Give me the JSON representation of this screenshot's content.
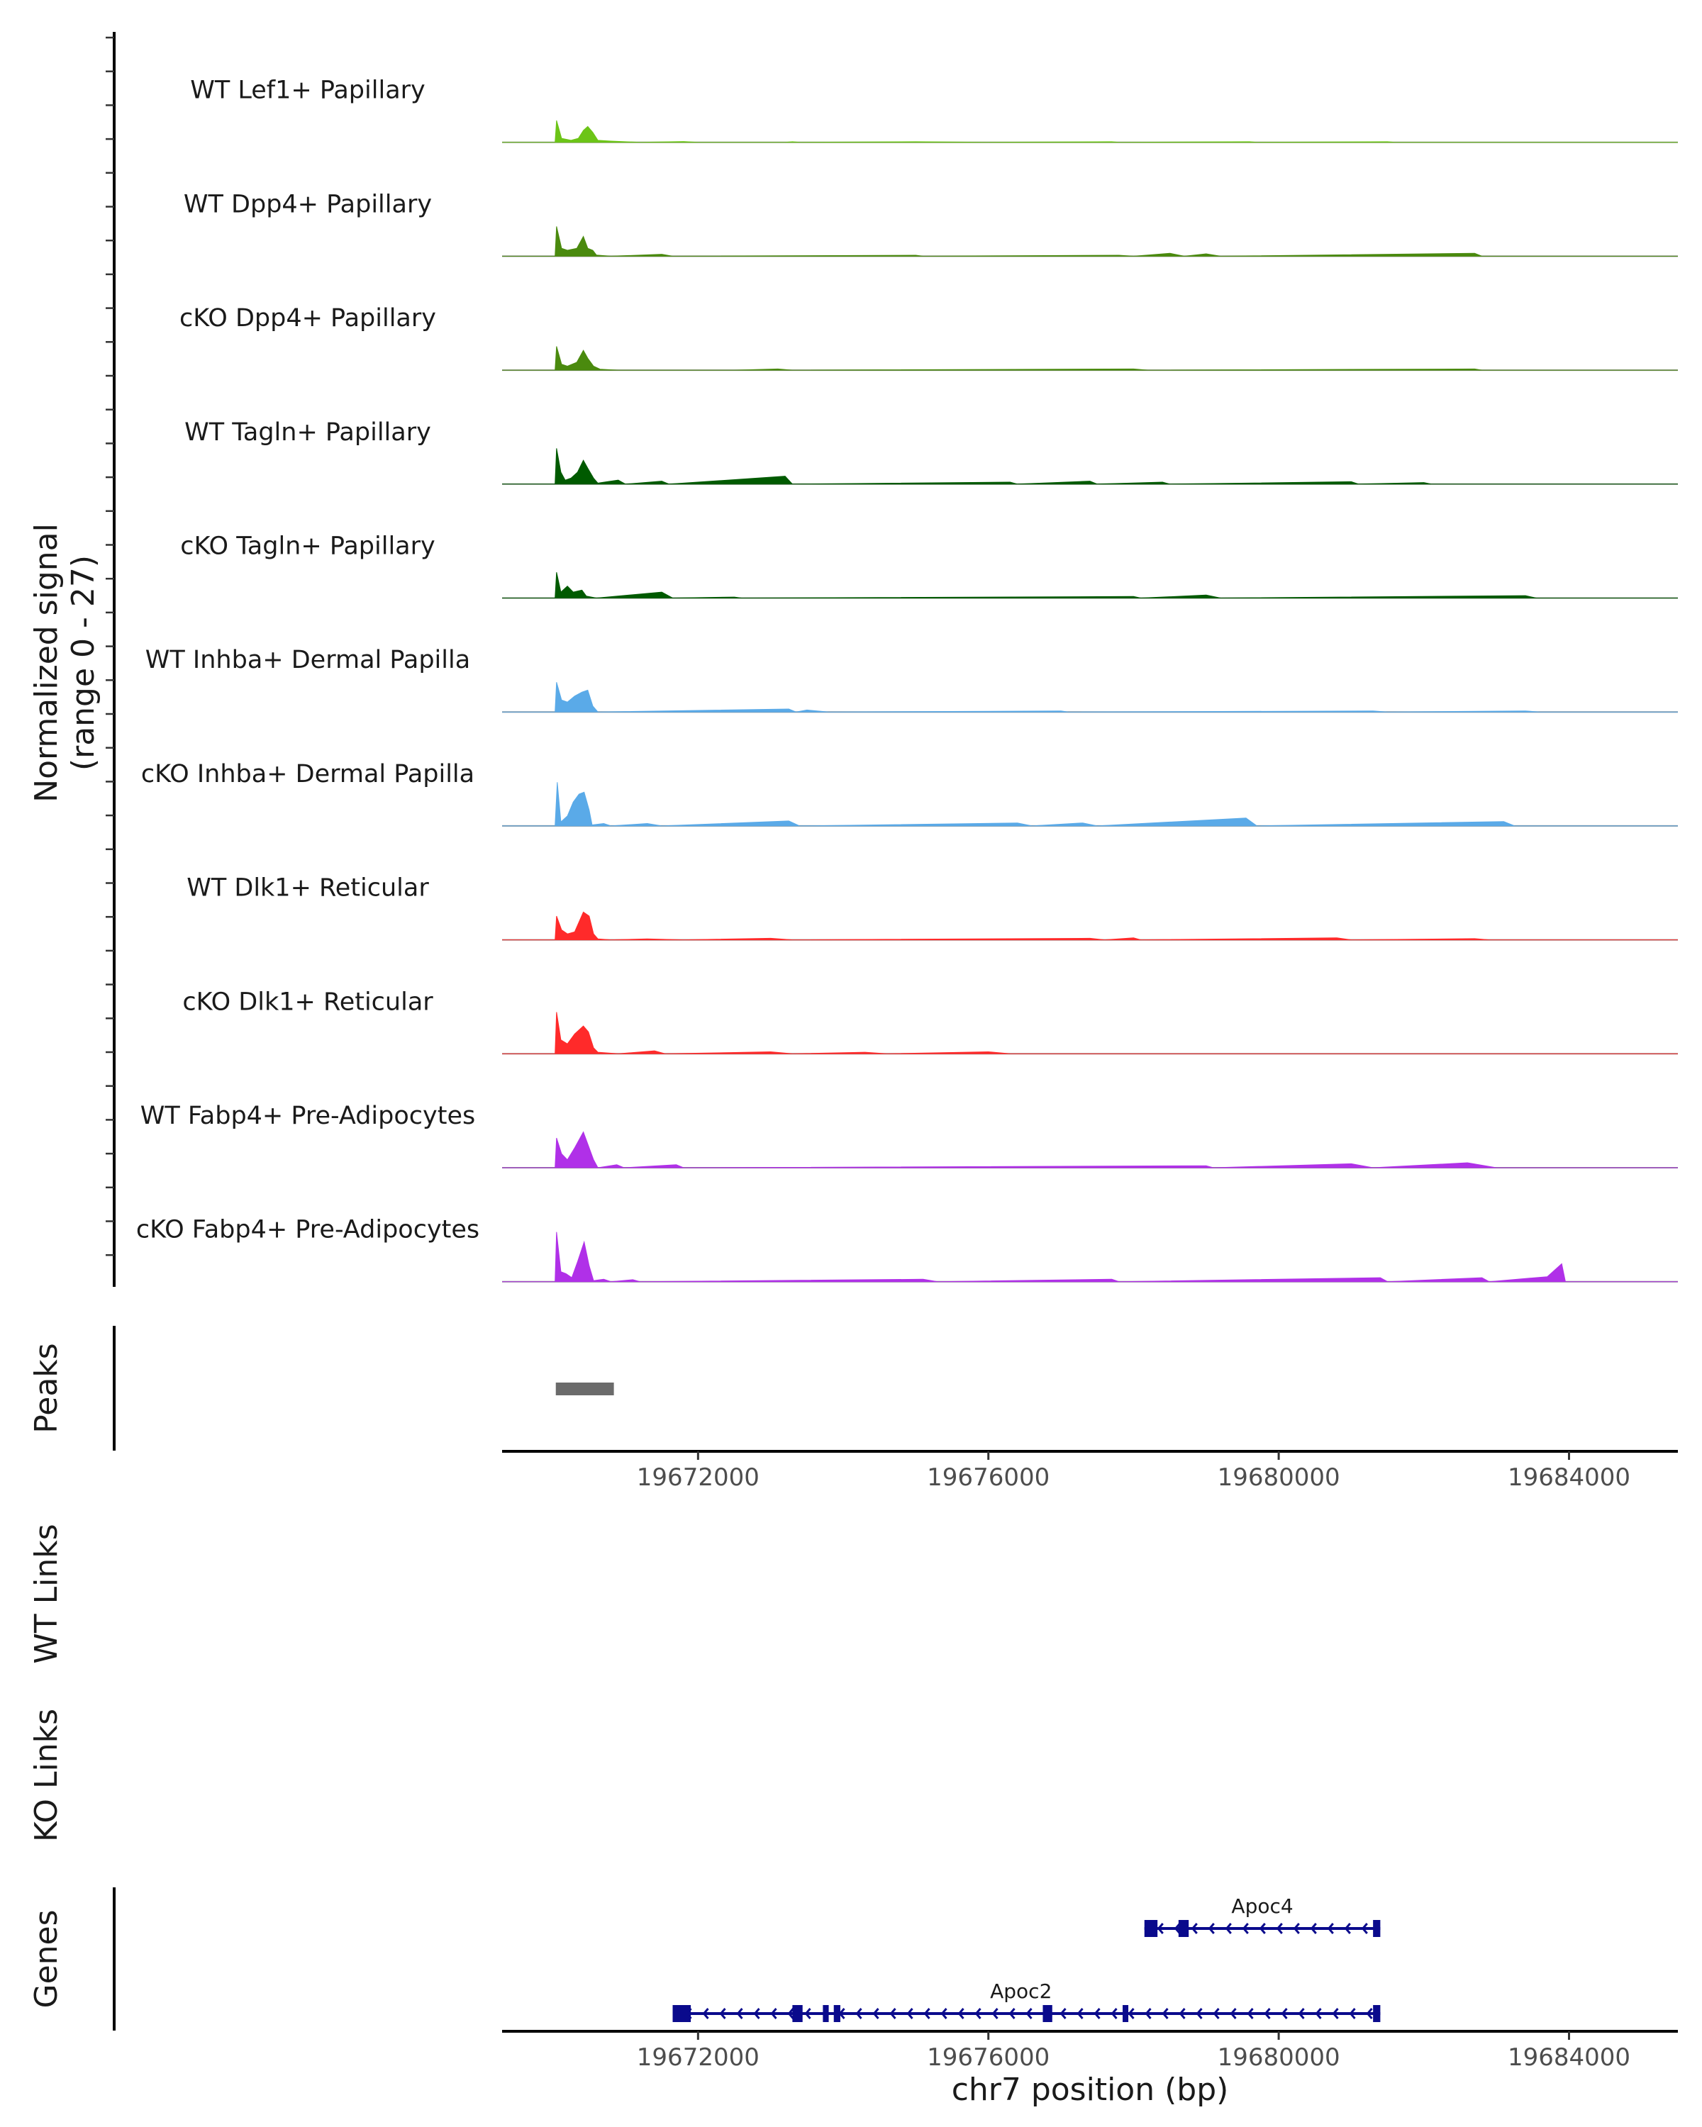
{
  "chart_data": {
    "type": "area",
    "title": "",
    "chromosome": "chr7",
    "xlabel": "chr7 position (bp)",
    "xlim": [
      19669300,
      19685500
    ],
    "xticks": [
      19672000,
      19676000,
      19680000,
      19684000
    ],
    "xtick_labels": [
      "19672000",
      "19676000",
      "19680000",
      "19684000"
    ],
    "ylabel_line1": "Normalized signal",
    "ylabel_line2": "(range 0 - 27)",
    "ylim": [
      0,
      27
    ],
    "tracks": [
      {
        "name": "WT Lef1+ Papillary",
        "color": "#6cc417",
        "points": [
          [
            19669300,
            0
          ],
          [
            19670030,
            0
          ],
          [
            19670050,
            11
          ],
          [
            19670120,
            2
          ],
          [
            19670250,
            1
          ],
          [
            19670350,
            2
          ],
          [
            19670420,
            6
          ],
          [
            19670480,
            8
          ],
          [
            19670550,
            5
          ],
          [
            19670620,
            1
          ],
          [
            19670800,
            0.6
          ],
          [
            19671000,
            0.3
          ],
          [
            19671200,
            0
          ],
          [
            19671800,
            0.4
          ],
          [
            19672000,
            0
          ],
          [
            19673200,
            0
          ],
          [
            19673300,
            0.3
          ],
          [
            19673400,
            0
          ],
          [
            19675000,
            0.3
          ],
          [
            19676000,
            0
          ],
          [
            19677700,
            0.3
          ],
          [
            19677800,
            0
          ],
          [
            19679600,
            0.3
          ],
          [
            19679700,
            0
          ],
          [
            19681500,
            0.3
          ],
          [
            19681600,
            0
          ],
          [
            19685500,
            0
          ]
        ]
      },
      {
        "name": "WT Dpp4+ Papillary",
        "color": "#4a8a0e",
        "points": [
          [
            19669300,
            0
          ],
          [
            19670030,
            0
          ],
          [
            19670050,
            15
          ],
          [
            19670120,
            4
          ],
          [
            19670200,
            3
          ],
          [
            19670330,
            4
          ],
          [
            19670420,
            10
          ],
          [
            19670480,
            4
          ],
          [
            19670550,
            3
          ],
          [
            19670600,
            0.6
          ],
          [
            19670800,
            0
          ],
          [
            19671500,
            1
          ],
          [
            19671650,
            0
          ],
          [
            19675000,
            0.5
          ],
          [
            19675100,
            0
          ],
          [
            19677800,
            0.5
          ],
          [
            19678000,
            0
          ],
          [
            19678500,
            1.5
          ],
          [
            19678700,
            0
          ],
          [
            19679000,
            1.2
          ],
          [
            19679200,
            0
          ],
          [
            19682700,
            1.5
          ],
          [
            19682800,
            0
          ],
          [
            19685500,
            0
          ]
        ]
      },
      {
        "name": "cKO Dpp4+ Papillary",
        "color": "#4a8a0e",
        "points": [
          [
            19669300,
            0
          ],
          [
            19670030,
            0
          ],
          [
            19670050,
            12
          ],
          [
            19670120,
            3
          ],
          [
            19670200,
            2
          ],
          [
            19670330,
            4
          ],
          [
            19670420,
            10
          ],
          [
            19670480,
            6
          ],
          [
            19670560,
            2
          ],
          [
            19670650,
            0.5
          ],
          [
            19670900,
            0
          ],
          [
            19672500,
            0
          ],
          [
            19673100,
            0.6
          ],
          [
            19673300,
            0
          ],
          [
            19678000,
            0.6
          ],
          [
            19678200,
            0
          ],
          [
            19682700,
            0.6
          ],
          [
            19682800,
            0
          ],
          [
            19685500,
            0
          ]
        ]
      },
      {
        "name": "WT Tagln+ Papillary",
        "color": "#005a00",
        "points": [
          [
            19669300,
            0
          ],
          [
            19670030,
            0
          ],
          [
            19670050,
            18
          ],
          [
            19670110,
            6
          ],
          [
            19670170,
            2
          ],
          [
            19670250,
            3
          ],
          [
            19670340,
            6
          ],
          [
            19670420,
            12
          ],
          [
            19670480,
            8
          ],
          [
            19670560,
            3
          ],
          [
            19670620,
            0.5
          ],
          [
            19670750,
            1.2
          ],
          [
            19670900,
            2
          ],
          [
            19671000,
            0
          ],
          [
            19671500,
            1.5
          ],
          [
            19671600,
            0
          ],
          [
            19673200,
            4
          ],
          [
            19673300,
            0
          ],
          [
            19676300,
            1
          ],
          [
            19676400,
            0
          ],
          [
            19677400,
            1.5
          ],
          [
            19677500,
            0
          ],
          [
            19678400,
            1
          ],
          [
            19678500,
            0
          ],
          [
            19681000,
            1.2
          ],
          [
            19681100,
            0
          ],
          [
            19682000,
            0.8
          ],
          [
            19682100,
            0
          ],
          [
            19685500,
            0
          ]
        ]
      },
      {
        "name": "cKO Tagln+ Papillary",
        "color": "#005a00",
        "points": [
          [
            19669300,
            0
          ],
          [
            19670030,
            0
          ],
          [
            19670050,
            13
          ],
          [
            19670110,
            3
          ],
          [
            19670200,
            6
          ],
          [
            19670280,
            3
          ],
          [
            19670400,
            4
          ],
          [
            19670460,
            1
          ],
          [
            19670600,
            0
          ],
          [
            19671500,
            3
          ],
          [
            19671650,
            0
          ],
          [
            19672500,
            0.5
          ],
          [
            19672600,
            0
          ],
          [
            19678000,
            0.8
          ],
          [
            19678100,
            0
          ],
          [
            19679000,
            1.5
          ],
          [
            19679200,
            0
          ],
          [
            19683400,
            1.2
          ],
          [
            19683550,
            0
          ],
          [
            19685500,
            0
          ]
        ]
      },
      {
        "name": "WT Inhba+ Dermal Papilla",
        "color": "#5aaae8",
        "points": [
          [
            19669300,
            0
          ],
          [
            19670030,
            0
          ],
          [
            19670050,
            15
          ],
          [
            19670120,
            6
          ],
          [
            19670200,
            5
          ],
          [
            19670300,
            8
          ],
          [
            19670400,
            10
          ],
          [
            19670480,
            11
          ],
          [
            19670550,
            3
          ],
          [
            19670620,
            0
          ],
          [
            19673250,
            1.5
          ],
          [
            19673350,
            0
          ],
          [
            19673500,
            1
          ],
          [
            19673800,
            0
          ],
          [
            19677000,
            0.5
          ],
          [
            19677100,
            0
          ],
          [
            19681300,
            0.5
          ],
          [
            19681500,
            0
          ],
          [
            19683400,
            0.5
          ],
          [
            19683600,
            0
          ],
          [
            19685500,
            0
          ]
        ]
      },
      {
        "name": "cKO Inhba+ Dermal Papilla",
        "color": "#5aaae8",
        "points": [
          [
            19669300,
            0
          ],
          [
            19670030,
            0
          ],
          [
            19670060,
            22
          ],
          [
            19670110,
            2
          ],
          [
            19670200,
            5
          ],
          [
            19670280,
            12
          ],
          [
            19670360,
            16
          ],
          [
            19670430,
            17
          ],
          [
            19670500,
            8
          ],
          [
            19670540,
            0.5
          ],
          [
            19670700,
            1.2
          ],
          [
            19670800,
            0
          ],
          [
            19671300,
            1.2
          ],
          [
            19671500,
            0
          ],
          [
            19673250,
            2.5
          ],
          [
            19673400,
            0
          ],
          [
            19676400,
            1.5
          ],
          [
            19676600,
            0
          ],
          [
            19677300,
            1.5
          ],
          [
            19677500,
            0
          ],
          [
            19679550,
            4
          ],
          [
            19679700,
            0
          ],
          [
            19683100,
            2.2
          ],
          [
            19683250,
            0
          ],
          [
            19685500,
            0
          ]
        ]
      },
      {
        "name": "WT Dlk1+ Reticular",
        "color": "#ff2a2a",
        "points": [
          [
            19669300,
            0
          ],
          [
            19670030,
            0
          ],
          [
            19670050,
            12
          ],
          [
            19670120,
            5
          ],
          [
            19670200,
            3
          ],
          [
            19670300,
            4
          ],
          [
            19670420,
            14
          ],
          [
            19670500,
            12
          ],
          [
            19670560,
            3
          ],
          [
            19670620,
            0.5
          ],
          [
            19670800,
            0
          ],
          [
            19671300,
            0.5
          ],
          [
            19671800,
            0
          ],
          [
            19673000,
            0.8
          ],
          [
            19673300,
            0
          ],
          [
            19677400,
            0.8
          ],
          [
            19677600,
            0
          ],
          [
            19678000,
            1
          ],
          [
            19678100,
            0
          ],
          [
            19680800,
            1
          ],
          [
            19681000,
            0
          ],
          [
            19682700,
            0.6
          ],
          [
            19682900,
            0
          ],
          [
            19685500,
            0
          ]
        ]
      },
      {
        "name": "cKO Dlk1+ Reticular",
        "color": "#ff2a2a",
        "points": [
          [
            19669300,
            0
          ],
          [
            19670030,
            0
          ],
          [
            19670050,
            21
          ],
          [
            19670110,
            7
          ],
          [
            19670200,
            5
          ],
          [
            19670300,
            10
          ],
          [
            19670420,
            14
          ],
          [
            19670490,
            11
          ],
          [
            19670560,
            3
          ],
          [
            19670620,
            0.8
          ],
          [
            19670900,
            0
          ],
          [
            19671400,
            1.5
          ],
          [
            19671550,
            0
          ],
          [
            19673000,
            1
          ],
          [
            19673300,
            0
          ],
          [
            19674300,
            0.8
          ],
          [
            19674600,
            0
          ],
          [
            19676000,
            1
          ],
          [
            19676300,
            0
          ],
          [
            19685500,
            0
          ]
        ]
      },
      {
        "name": "WT Fabp4+ Pre-Adipocytes",
        "color": "#b030e8",
        "points": [
          [
            19669300,
            0
          ],
          [
            19670030,
            0
          ],
          [
            19670050,
            15
          ],
          [
            19670120,
            7
          ],
          [
            19670200,
            4
          ],
          [
            19670300,
            10
          ],
          [
            19670420,
            18
          ],
          [
            19670480,
            12
          ],
          [
            19670560,
            4
          ],
          [
            19670620,
            0
          ],
          [
            19670880,
            1.5
          ],
          [
            19670980,
            0
          ],
          [
            19671700,
            1.5
          ],
          [
            19671800,
            0
          ],
          [
            19679000,
            1
          ],
          [
            19679100,
            0
          ],
          [
            19681000,
            2
          ],
          [
            19681300,
            0
          ],
          [
            19682600,
            2.5
          ],
          [
            19683000,
            0
          ],
          [
            19685500,
            0
          ]
        ]
      },
      {
        "name": "cKO Fabp4+ Pre-Adipocytes",
        "color": "#b030e8",
        "points": [
          [
            19669300,
            0
          ],
          [
            19670030,
            0
          ],
          [
            19670050,
            25
          ],
          [
            19670110,
            5
          ],
          [
            19670180,
            4
          ],
          [
            19670260,
            2
          ],
          [
            19670340,
            10
          ],
          [
            19670430,
            20
          ],
          [
            19670500,
            8
          ],
          [
            19670560,
            0.5
          ],
          [
            19670700,
            1.2
          ],
          [
            19670800,
            0
          ],
          [
            19671100,
            1
          ],
          [
            19671200,
            0
          ],
          [
            19675100,
            1.2
          ],
          [
            19675300,
            0
          ],
          [
            19677700,
            1.2
          ],
          [
            19677800,
            0
          ],
          [
            19681400,
            2
          ],
          [
            19681500,
            0
          ],
          [
            19682800,
            2
          ],
          [
            19682900,
            0
          ],
          [
            19683700,
            2.5
          ],
          [
            19683900,
            9
          ],
          [
            19683950,
            0
          ],
          [
            19685500,
            0
          ]
        ]
      }
    ],
    "peaks": {
      "label": "Peaks",
      "color": "#6b6b6b",
      "ranges": [
        [
          19670040,
          19670840
        ]
      ]
    },
    "links": [
      {
        "label": "WT Links",
        "items": []
      },
      {
        "label": "KO Links",
        "items": []
      }
    ],
    "genes": {
      "label": "Genes",
      "color": "#0a0a8c",
      "items": [
        {
          "name": "Apoc4",
          "start": 19678150,
          "end": 19681400,
          "strand": "-",
          "exons": [
            [
              19678150,
              19678330
            ],
            [
              19678620,
              19678760
            ],
            [
              19681300,
              19681400
            ]
          ]
        },
        {
          "name": "Apoc2",
          "start": 19671650,
          "end": 19681400,
          "strand": "-",
          "exons": [
            [
              19671650,
              19671900
            ],
            [
              19673300,
              19673440
            ],
            [
              19673720,
              19673800
            ],
            [
              19673870,
              19673960
            ],
            [
              19676750,
              19676880
            ],
            [
              19677850,
              19677900
            ],
            [
              19681300,
              19681400
            ]
          ]
        }
      ]
    }
  }
}
